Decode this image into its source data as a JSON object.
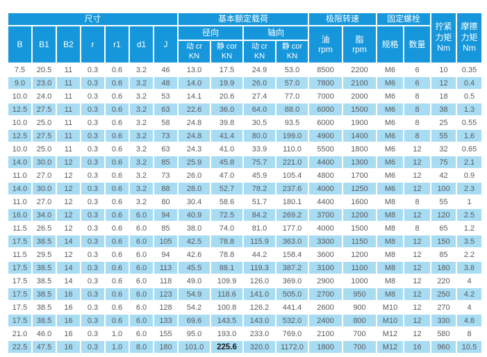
{
  "colors": {
    "header_blue": "#1697DB",
    "stripe_blue": "#A8DCF3",
    "data_text": "#58595B",
    "header_text": "#FFFFFF"
  },
  "table": {
    "groups": {
      "dimensions": "尺寸",
      "basic_load": "基本额定载荷",
      "limit_speed": "极限转速",
      "fixing_bolt": "固定螺栓"
    },
    "torque_headers": {
      "tightening": "拧紧\n力矩\nNm",
      "friction": "摩擦\n力矩\nNm"
    },
    "subgroups": {
      "radial": "径向",
      "axial": "轴向"
    },
    "dim_columns": [
      "B",
      "B1",
      "B2",
      "r",
      "r1",
      "d1",
      "J"
    ],
    "load_columns": [
      "动 cr\nKN",
      "静 cor\nKN",
      "动 cr\nKN",
      "静 cor\nKN"
    ],
    "speed_columns": [
      "油\nrpm",
      "脂\nrpm"
    ],
    "bolt_columns": [
      "规格",
      "数量"
    ],
    "rows": [
      [
        "7.5",
        "20.5",
        "11",
        "0.3",
        "0.6",
        "3.2",
        "46",
        "13.0",
        "17.5",
        "24.9",
        "53.0",
        "8500",
        "2200",
        "M6",
        "6",
        "10",
        "0.35"
      ],
      [
        "9.0",
        "23.0",
        "11",
        "0.3",
        "0.6",
        "3.2",
        "48",
        "14.0",
        "19.9",
        "26.0",
        "57.0",
        "7800",
        "2100",
        "M6",
        "6",
        "12",
        "0.4"
      ],
      [
        "10.0",
        "24.0",
        "11",
        "0.3",
        "0.6",
        "3.2",
        "53",
        "14.1",
        "20.6",
        "27.4",
        "77.0",
        "7000",
        "2000",
        "M6",
        "8",
        "18",
        "0.5"
      ],
      [
        "12.5",
        "27.5",
        "11",
        "0.3",
        "0.6",
        "3.2",
        "63",
        "22.6",
        "36.0",
        "64.0",
        "88.0",
        "6000",
        "1500",
        "M6",
        "8",
        "38",
        "1.3"
      ],
      [
        "10.0",
        "25.0",
        "11",
        "0.3",
        "0.6",
        "3.2",
        "58",
        "24.8",
        "39.8",
        "30.5",
        "93.5",
        "6000",
        "1900",
        "M6",
        "8",
        "25",
        "0.55"
      ],
      [
        "12.5",
        "27.5",
        "11",
        "0.3",
        "0.6",
        "3.2",
        "73",
        "24.8",
        "41.4",
        "80.0",
        "199.0",
        "4900",
        "1400",
        "M6",
        "8",
        "55",
        "1.6"
      ],
      [
        "10.0",
        "25.0",
        "11",
        "0.3",
        "0.6",
        "3.2",
        "63",
        "24.3",
        "41.0",
        "33.9",
        "110.0",
        "5500",
        "1800",
        "M6",
        "12",
        "32",
        "0.65"
      ],
      [
        "14.0",
        "30.0",
        "12",
        "0.3",
        "0.6",
        "3.2",
        "85",
        "25.9",
        "45.8",
        "75.7",
        "221.0",
        "4400",
        "1300",
        "M6",
        "12",
        "75",
        "2.1"
      ],
      [
        "11.0",
        "27.0",
        "12",
        "0.3",
        "0.6",
        "3.2",
        "73",
        "26.0",
        "47.0",
        "45.9",
        "105.4",
        "4800",
        "1700",
        "M6",
        "12",
        "42",
        "0.9"
      ],
      [
        "14.0",
        "30.0",
        "12",
        "0.3",
        "0.6",
        "3.2",
        "88",
        "28.0",
        "52.7",
        "78.2",
        "237.6",
        "4000",
        "1250",
        "M6",
        "12",
        "100",
        "2.3"
      ],
      [
        "11.0",
        "27.0",
        "12",
        "0.3",
        "0.6",
        "3.2",
        "80",
        "30.4",
        "58.6",
        "51.7",
        "180.1",
        "4400",
        "1600",
        "M8",
        "8",
        "55",
        "1"
      ],
      [
        "16.0",
        "34.0",
        "12",
        "0.3",
        "0.6",
        "6.0",
        "94",
        "40.9",
        "72.5",
        "84.2",
        "269.2",
        "3700",
        "1200",
        "M8",
        "12",
        "120",
        "2.5"
      ],
      [
        "11.5",
        "26.5",
        "12",
        "0.3",
        "0.6",
        "6.0",
        "85",
        "38.0",
        "74.0",
        "81.0",
        "177.0",
        "4000",
        "1500",
        "M8",
        "8",
        "65",
        "1.2"
      ],
      [
        "17.5",
        "38.5",
        "14",
        "0.3",
        "0.6",
        "6.0",
        "105",
        "42.5",
        "78.8",
        "115.9",
        "363.0",
        "3300",
        "1150",
        "M8",
        "12",
        "150",
        "3.5"
      ],
      [
        "11.5",
        "29.5",
        "12",
        "0.3",
        "0.6",
        "6.0",
        "94",
        "42.6",
        "78.8",
        "44.2",
        "158.4",
        "3600",
        "1200",
        "M8",
        "12",
        "85",
        "2.2"
      ],
      [
        "17.5",
        "38.5",
        "14",
        "0.3",
        "0.6",
        "6.0",
        "113",
        "45.5",
        "88.1",
        "119.3",
        "387.2",
        "3100",
        "1100",
        "M8",
        "12",
        "180",
        "3.8"
      ],
      [
        "17.5",
        "38.5",
        "14",
        "0.3",
        "0.6",
        "6.0",
        "118",
        "49.0",
        "109.9",
        "126.0",
        "369.0",
        "2900",
        "1000",
        "M8",
        "12",
        "220",
        "4"
      ],
      [
        "17.5",
        "38.5",
        "16",
        "0.3",
        "0.6",
        "6.0",
        "123",
        "54.9",
        "118.6",
        "141.0",
        "505.0",
        "2700",
        "950",
        "M8",
        "12",
        "250",
        "4.2"
      ],
      [
        "17.5",
        "38.5",
        "16",
        "0.3",
        "0.6",
        "6.0",
        "128",
        "54.2",
        "100.8",
        "126.2",
        "441.4",
        "2600",
        "900",
        "M10",
        "12",
        "270",
        "4"
      ],
      [
        "17.5",
        "38.5",
        "16",
        "0.3",
        "0.6",
        "6.0",
        "133",
        "69.6",
        "143.5",
        "143.0",
        "532.0",
        "2400",
        "800",
        "M10",
        "12",
        "330",
        "4.8"
      ],
      [
        "21.0",
        "46.0",
        "16",
        "0.3",
        "1.0",
        "6.0",
        "155",
        "95.0",
        "193.0",
        "233.0",
        "769.0",
        "2100",
        "700",
        "M12",
        "12",
        "580",
        "8"
      ],
      [
        "22.5",
        "47.5",
        "16",
        "0.3",
        "1.0",
        "8.0",
        "180",
        "101.0",
        "225.6",
        "320.0",
        "1172.0",
        "1800",
        "700",
        "M12",
        "16",
        "960",
        "10.5"
      ]
    ],
    "bold_cell": {
      "row": 21,
      "col": 8
    }
  }
}
